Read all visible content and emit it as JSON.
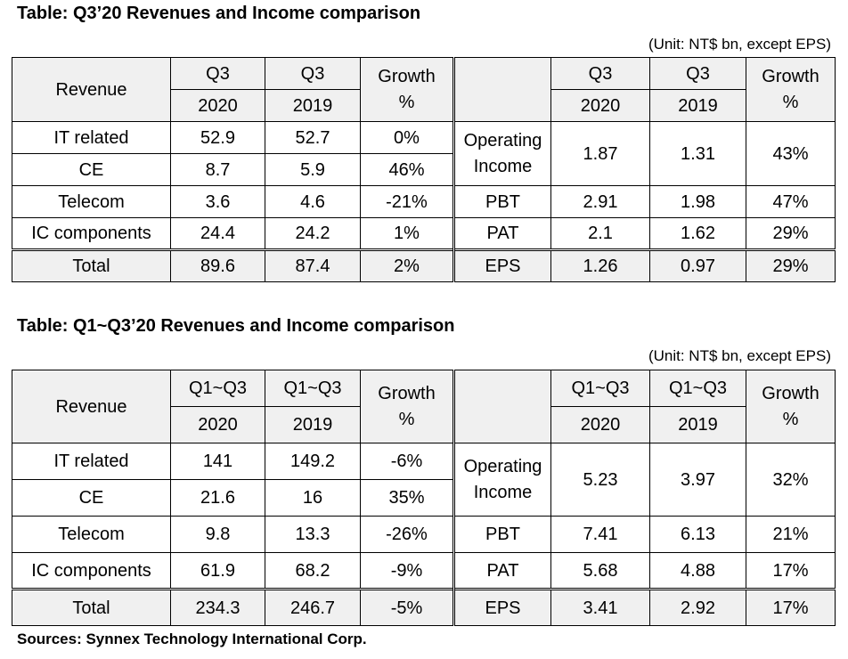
{
  "table1": {
    "title": "Table: Q3’20 Revenues and Income comparison",
    "unit": "(Unit: NT$ bn, except EPS)",
    "revenue_header": "Revenue",
    "col_period_a": "Q3",
    "col_period_b": "Q3",
    "col_year_a": "2020",
    "col_year_b": "2019",
    "growth_line1": "Growth",
    "growth_line2": "%",
    "right_period_a": "Q3",
    "right_period_b": "Q3",
    "right_year_a": "2020",
    "right_year_b": "2019",
    "right_growth_line1": "Growth",
    "right_growth_line2": "%",
    "revenue_rows": [
      {
        "label": "IT related",
        "v2020": "52.9",
        "v2019": "52.7",
        "growth": "0%"
      },
      {
        "label": "CE",
        "v2020": "8.7",
        "v2019": "5.9",
        "growth": "46%"
      },
      {
        "label": "Telecom",
        "v2020": "3.6",
        "v2019": "4.6",
        "growth": "-21%"
      },
      {
        "label": "IC components",
        "v2020": "24.4",
        "v2019": "24.2",
        "growth": "1%"
      },
      {
        "label": "Total",
        "v2020": "89.6",
        "v2019": "87.4",
        "growth": "2%"
      }
    ],
    "operating_income": {
      "label_line1": "Operating",
      "label_line2": "Income",
      "v2020": "1.87",
      "v2019": "1.31",
      "growth": "43%"
    },
    "income_rows": [
      {
        "label": "PBT",
        "v2020": "2.91",
        "v2019": "1.98",
        "growth": "47%"
      },
      {
        "label": "PAT",
        "v2020": "2.1",
        "v2019": "1.62",
        "growth": "29%"
      },
      {
        "label": "EPS",
        "v2020": "1.26",
        "v2019": "0.97",
        "growth": "29%"
      }
    ]
  },
  "table2": {
    "title": "Table: Q1~Q3’20 Revenues and Income comparison",
    "unit": "(Unit: NT$ bn, except EPS)",
    "revenue_header": "Revenue",
    "col_period_a": "Q1~Q3",
    "col_period_b": "Q1~Q3",
    "col_year_a": "2020",
    "col_year_b": "2019",
    "growth_line1": "Growth",
    "growth_line2": "%",
    "right_period_a": "Q1~Q3",
    "right_period_b": "Q1~Q3",
    "right_year_a": "2020",
    "right_year_b": "2019",
    "right_growth_line1": "Growth",
    "right_growth_line2": "%",
    "revenue_rows": [
      {
        "label": "IT related",
        "v2020": "141",
        "v2019": "149.2",
        "growth": "-6%"
      },
      {
        "label": "CE",
        "v2020": "21.6",
        "v2019": "16",
        "growth": "35%"
      },
      {
        "label": "Telecom",
        "v2020": "9.8",
        "v2019": "13.3",
        "growth": "-26%"
      },
      {
        "label": "IC components",
        "v2020": "61.9",
        "v2019": "68.2",
        "growth": "-9%"
      },
      {
        "label": "Total",
        "v2020": "234.3",
        "v2019": "246.7",
        "growth": "-5%"
      }
    ],
    "operating_income": {
      "label_line1": "Operating",
      "label_line2": "Income",
      "v2020": "5.23",
      "v2019": "3.97",
      "growth": "32%"
    },
    "income_rows": [
      {
        "label": "PBT",
        "v2020": "7.41",
        "v2019": "6.13",
        "growth": "21%"
      },
      {
        "label": "PAT",
        "v2020": "5.68",
        "v2019": "4.88",
        "growth": "17%"
      },
      {
        "label": "EPS",
        "v2020": "3.41",
        "v2019": "2.92",
        "growth": "17%"
      }
    ]
  },
  "sources": "Sources: Synnex Technology International Corp."
}
